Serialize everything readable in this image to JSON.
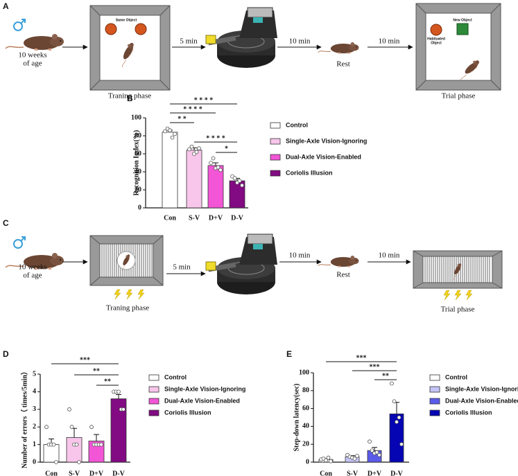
{
  "figure": {
    "panel_a": {
      "label": "A",
      "age_line1": "10 weeks",
      "age_line2": "of age",
      "training": "Traning phase",
      "same_object": "Same Object",
      "time1": "5 min",
      "time2": "10 min",
      "rest": "Rest",
      "time3": "10 min",
      "habituated_line1": "Habituated",
      "habituated_line2": "Object",
      "new_object": "New Object",
      "trial": "Trial phase"
    },
    "panel_c": {
      "label": "C",
      "age_line1": "10 weeks",
      "age_line2": "of age",
      "training": "Traning phase",
      "time1": "5 min",
      "time2": "10 min",
      "rest": "Rest",
      "time3": "10 min",
      "trial": "Trial phase"
    }
  },
  "chart_data": [
    {
      "type": "bar",
      "panel_label": "B",
      "ylabel": "Recognition Index(%)",
      "categories": [
        "Con",
        "S-V",
        "D+V",
        "D-V"
      ],
      "values": [
        84,
        64,
        47,
        30
      ],
      "errors": [
        2.2,
        2.6,
        3,
        2.8
      ],
      "points": [
        [
          85,
          88,
          86,
          78,
          82
        ],
        [
          65,
          68,
          60,
          62,
          66
        ],
        [
          50,
          55,
          44,
          45,
          42
        ],
        [
          35,
          33,
          28,
          30,
          25
        ]
      ],
      "colors": [
        "#ffffff",
        "#f8c6ea",
        "#f255d6",
        "#820a82"
      ],
      "legend": [
        "Control",
        "Single-Axle Vision-Ignoring",
        "Dual-Axle Vision-Enabled",
        "Coriolis Illusion"
      ],
      "annotations": [
        "* * * *",
        "* * * *",
        "* *",
        "* * * *",
        "*"
      ],
      "ylim": [
        0,
        100
      ],
      "yticks": [
        0,
        20,
        40,
        60,
        80,
        100
      ]
    },
    {
      "type": "bar",
      "panel_label": "D",
      "ylabel": "Number of errors（ times/5min）",
      "categories": [
        "Con",
        "S-V",
        "D+V",
        "D-V"
      ],
      "values": [
        1.0,
        1.4,
        1.2,
        3.6
      ],
      "errors": [
        0.32,
        0.52,
        0.37,
        0.24
      ],
      "points": [
        [
          2,
          1,
          1,
          1,
          0
        ],
        [
          3,
          2,
          1,
          1,
          0
        ],
        [
          2,
          1,
          1,
          1,
          1
        ],
        [
          4,
          4,
          4,
          3,
          3
        ]
      ],
      "colors": [
        "#ffffff",
        "#f8c6ea",
        "#f255d6",
        "#820a82"
      ],
      "legend": [
        "Control",
        "Single-Axle Vision-Ignoring",
        "Dual-Axle Vision-Enabled",
        "Coriolis Illusion"
      ],
      "annotations": [
        "***",
        "**",
        "**"
      ],
      "ylim": [
        0,
        5
      ],
      "yticks": [
        0,
        1,
        2,
        3,
        4,
        5
      ]
    },
    {
      "type": "bar",
      "panel_label": "E",
      "ylabel": "Step-down latency(sec)",
      "categories": [
        "Con",
        "S-V",
        "D+V",
        "D-V"
      ],
      "values": [
        3,
        6,
        13,
        54
      ],
      "errors": [
        1,
        1.3,
        3.5,
        13
      ],
      "points": [
        [
          3,
          4,
          2,
          5,
          1
        ],
        [
          8,
          6,
          5,
          4,
          7
        ],
        [
          23,
          13,
          10,
          11,
          8
        ],
        [
          88,
          68,
          45,
          50,
          20
        ]
      ],
      "colors": [
        "#ffffff",
        "#c4c4f6",
        "#5b5bea",
        "#0505b4"
      ],
      "legend": [
        "Control",
        "Single-Axle Vision-Ignoring",
        "Dual-Axle Vision-Enabled",
        "Coriolis Illusion"
      ],
      "annotations": [
        "***",
        "***",
        "**"
      ],
      "ylim": [
        0,
        100
      ],
      "yticks": [
        0,
        20,
        40,
        60,
        80,
        100
      ]
    }
  ]
}
